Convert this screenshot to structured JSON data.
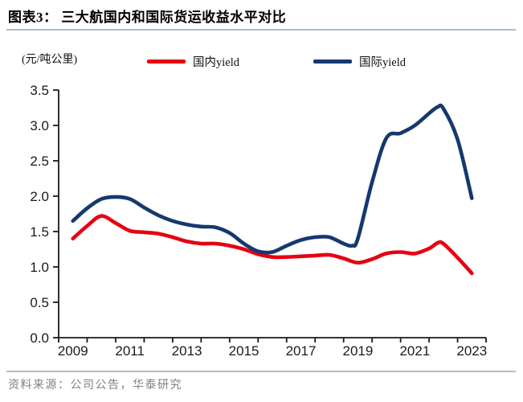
{
  "header": {
    "title": "图表3： 三大航国内和国际货运收益水平对比"
  },
  "chart_data": {
    "type": "line",
    "title": "三大航国内和国际货运收益水平对比",
    "ylabel": "(元/吨公里)",
    "ylim": [
      0.0,
      3.5
    ],
    "ytick_step": 0.5,
    "ytick_labels": [
      "0.0",
      "0.5",
      "1.0",
      "1.5",
      "2.0",
      "2.5",
      "3.0",
      "3.5"
    ],
    "x_categories": [
      2009,
      2010,
      2011,
      2012,
      2013,
      2014,
      2015,
      2016,
      2017,
      2018,
      2019,
      2020,
      2021,
      2022,
      2023
    ],
    "xtick_labels": [
      2009,
      2011,
      2013,
      2015,
      2017,
      2019,
      2021,
      2023
    ],
    "grid": false,
    "legend_position": "top",
    "axis_color": "#1a1a1a",
    "series": [
      {
        "name": "国内yield",
        "color": "#E60012",
        "points": [
          [
            2009,
            1.4
          ],
          [
            2009.5,
            1.58
          ],
          [
            2010,
            1.72
          ],
          [
            2010.5,
            1.62
          ],
          [
            2011,
            1.51
          ],
          [
            2011.5,
            1.49
          ],
          [
            2012,
            1.47
          ],
          [
            2012.5,
            1.42
          ],
          [
            2013,
            1.36
          ],
          [
            2013.5,
            1.33
          ],
          [
            2014,
            1.33
          ],
          [
            2014.5,
            1.3
          ],
          [
            2015,
            1.25
          ],
          [
            2015.5,
            1.18
          ],
          [
            2016,
            1.14
          ],
          [
            2016.5,
            1.14
          ],
          [
            2017,
            1.15
          ],
          [
            2017.5,
            1.16
          ],
          [
            2018,
            1.17
          ],
          [
            2018.5,
            1.12
          ],
          [
            2019,
            1.06
          ],
          [
            2019.5,
            1.11
          ],
          [
            2020,
            1.19
          ],
          [
            2020.5,
            1.21
          ],
          [
            2021,
            1.19
          ],
          [
            2021.5,
            1.26
          ],
          [
            2021.8,
            1.34
          ],
          [
            2022,
            1.33
          ],
          [
            2022.5,
            1.13
          ],
          [
            2023,
            0.91
          ]
        ]
      },
      {
        "name": "国际yield",
        "color": "#16386F",
        "points": [
          [
            2009,
            1.65
          ],
          [
            2009.5,
            1.83
          ],
          [
            2010,
            1.96
          ],
          [
            2010.5,
            1.99
          ],
          [
            2011,
            1.96
          ],
          [
            2011.5,
            1.84
          ],
          [
            2012,
            1.73
          ],
          [
            2012.5,
            1.65
          ],
          [
            2013,
            1.6
          ],
          [
            2013.5,
            1.57
          ],
          [
            2014,
            1.56
          ],
          [
            2014.5,
            1.48
          ],
          [
            2015,
            1.33
          ],
          [
            2015.5,
            1.22
          ],
          [
            2016,
            1.21
          ],
          [
            2016.5,
            1.3
          ],
          [
            2017,
            1.38
          ],
          [
            2017.5,
            1.42
          ],
          [
            2018,
            1.42
          ],
          [
            2018.5,
            1.33
          ],
          [
            2018.8,
            1.3
          ],
          [
            2019,
            1.4
          ],
          [
            2019.5,
            2.2
          ],
          [
            2020,
            2.82
          ],
          [
            2020.5,
            2.89
          ],
          [
            2021,
            3.0
          ],
          [
            2021.5,
            3.17
          ],
          [
            2021.8,
            3.26
          ],
          [
            2022,
            3.24
          ],
          [
            2022.5,
            2.8
          ],
          [
            2023,
            1.97
          ]
        ]
      }
    ]
  },
  "footer": {
    "source": "资料来源：公司公告，华泰研究"
  },
  "colors": {
    "divider": "#A9BDD1",
    "domestic_line": "#E60012",
    "international_line": "#16386F"
  }
}
